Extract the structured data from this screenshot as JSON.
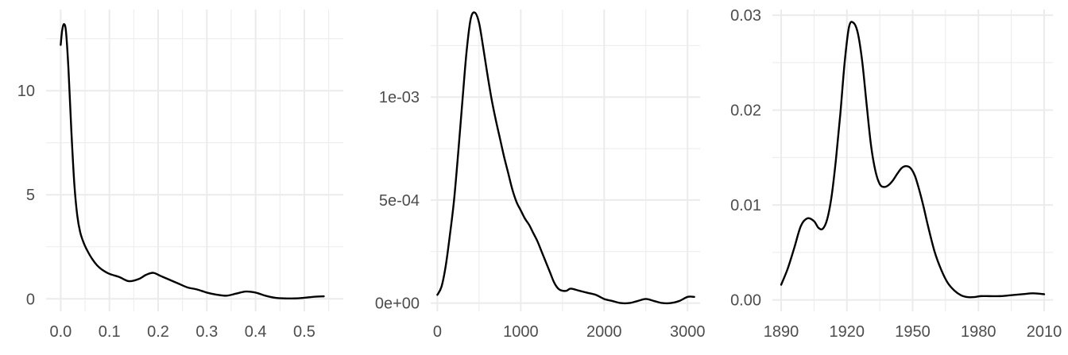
{
  "chart_data": [
    {
      "type": "line",
      "title": "",
      "xlabel": "",
      "ylabel": "",
      "grid": true,
      "xlim": [
        -0.03,
        0.58
      ],
      "ylim": [
        -0.6,
        13.9
      ],
      "x_ticks": [
        0.0,
        0.1,
        0.2,
        0.3,
        0.4,
        0.5
      ],
      "x_tick_labels": [
        "0.0",
        "0.1",
        "0.2",
        "0.3",
        "0.4",
        "0.5"
      ],
      "y_ticks": [
        0,
        5,
        10
      ],
      "y_tick_labels": [
        "0",
        "5",
        "10"
      ],
      "series": [
        {
          "x": [
            0.0,
            0.003,
            0.007,
            0.011,
            0.016,
            0.022,
            0.028,
            0.034,
            0.04,
            0.047,
            0.055,
            0.065,
            0.075,
            0.085,
            0.1,
            0.12,
            0.14,
            0.16,
            0.175,
            0.19,
            0.205,
            0.22,
            0.24,
            0.26,
            0.28,
            0.3,
            0.32,
            0.34,
            0.36,
            0.38,
            0.4,
            0.42,
            0.44,
            0.46,
            0.48,
            0.5,
            0.52,
            0.54
          ],
          "y": [
            12.2,
            12.9,
            13.2,
            12.8,
            11.0,
            8.0,
            5.5,
            4.0,
            3.2,
            2.7,
            2.3,
            1.9,
            1.6,
            1.4,
            1.2,
            1.05,
            0.85,
            0.95,
            1.15,
            1.25,
            1.1,
            0.95,
            0.75,
            0.55,
            0.45,
            0.3,
            0.2,
            0.15,
            0.25,
            0.35,
            0.3,
            0.15,
            0.05,
            0.02,
            0.02,
            0.05,
            0.1,
            0.12
          ]
        }
      ]
    },
    {
      "type": "line",
      "title": "",
      "xlabel": "",
      "ylabel": "",
      "grid": true,
      "xlim": [
        -80,
        3150
      ],
      "ylim": [
        -4e-05,
        0.001425
      ],
      "x_ticks": [
        0,
        1000,
        2000,
        3000
      ],
      "x_tick_labels": [
        "0",
        "1000",
        "2000",
        "3000"
      ],
      "y_ticks": [
        0,
        0.0005,
        0.001
      ],
      "y_tick_labels": [
        "0e+00",
        "5e-04",
        "1e-03"
      ],
      "series": [
        {
          "x": [
            0,
            50,
            100,
            150,
            200,
            250,
            300,
            350,
            400,
            450,
            500,
            550,
            600,
            650,
            700,
            750,
            800,
            850,
            900,
            950,
            1000,
            1050,
            1100,
            1150,
            1200,
            1250,
            1300,
            1350,
            1400,
            1450,
            1500,
            1550,
            1600,
            1700,
            1800,
            1900,
            2000,
            2100,
            2200,
            2300,
            2400,
            2500,
            2600,
            2700,
            2800,
            2900,
            3000,
            3080
          ],
          "y": [
            4e-05,
            8e-05,
            0.00018,
            0.00033,
            0.0005,
            0.00073,
            0.00098,
            0.00122,
            0.00138,
            0.00141,
            0.00136,
            0.00124,
            0.00111,
            0.00099,
            0.00089,
            0.0008,
            0.00071,
            0.00063,
            0.00055,
            0.00049,
            0.00045,
            0.00041,
            0.00038,
            0.00034,
            0.0003,
            0.00025,
            0.0002,
            0.00015,
            0.0001,
            7e-05,
            6e-05,
            6e-05,
            7e-05,
            6e-05,
            5e-05,
            4e-05,
            2e-05,
            1e-05,
            0.0,
            0.0,
            1e-05,
            2e-05,
            1e-05,
            0.0,
            0.0,
            1e-05,
            3e-05,
            3e-05
          ]
        }
      ]
    },
    {
      "type": "line",
      "title": "",
      "xlabel": "",
      "ylabel": "",
      "grid": true,
      "xlim": [
        1886,
        2014
      ],
      "ylim": [
        -0.0012,
        0.0306
      ],
      "x_ticks": [
        1890,
        1920,
        1950,
        1980,
        2010
      ],
      "x_tick_labels": [
        "1890",
        "1920",
        "1950",
        "1980",
        "2010"
      ],
      "y_ticks": [
        0.0,
        0.01,
        0.02,
        0.03
      ],
      "y_tick_labels": [
        "0.00",
        "0.01",
        "0.02",
        "0.03"
      ],
      "series": [
        {
          "x": [
            1890,
            1893,
            1896,
            1899,
            1902,
            1905,
            1907,
            1909,
            1911,
            1913,
            1915,
            1917,
            1919,
            1921,
            1923,
            1925,
            1927,
            1929,
            1931,
            1933,
            1935,
            1937,
            1939,
            1941,
            1943,
            1945,
            1947,
            1949,
            1951,
            1953,
            1955,
            1957,
            1960,
            1963,
            1966,
            1969,
            1972,
            1975,
            1978,
            1981,
            1985,
            1990,
            1995,
            2000,
            2005,
            2010
          ],
          "y": [
            0.0016,
            0.0033,
            0.0055,
            0.0078,
            0.0086,
            0.0083,
            0.0076,
            0.0075,
            0.0085,
            0.0109,
            0.0148,
            0.0196,
            0.0251,
            0.0288,
            0.0292,
            0.0281,
            0.0251,
            0.0206,
            0.0163,
            0.0136,
            0.0122,
            0.0119,
            0.0121,
            0.0126,
            0.0133,
            0.0139,
            0.0141,
            0.0139,
            0.0131,
            0.0116,
            0.0098,
            0.0078,
            0.0051,
            0.0032,
            0.0018,
            0.001,
            0.0005,
            0.0003,
            0.0003,
            0.0004,
            0.0004,
            0.0004,
            0.0005,
            0.0006,
            0.0007,
            0.0006
          ]
        }
      ]
    }
  ]
}
